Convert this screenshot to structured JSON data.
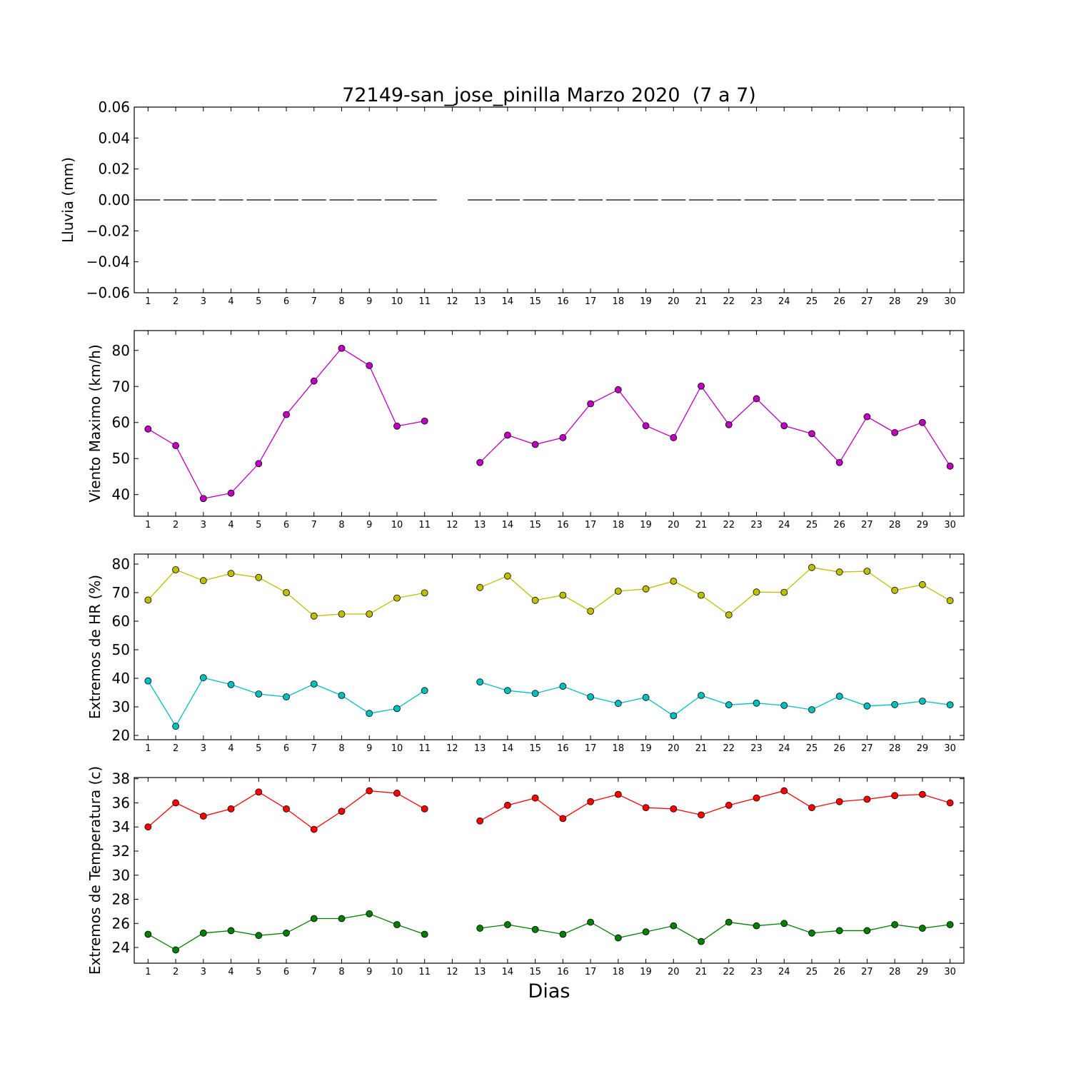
{
  "figure_title": "72149-san_jose_pinilla Marzo 2020  (7 a 7)",
  "xlabel": "Dias",
  "chart_data": [
    {
      "type": "line",
      "title": "72149-san_jose_pinilla Marzo 2020  (7 a 7)",
      "ylabel": "Lluvia (mm)",
      "xlabel": "",
      "ylim": [
        -0.06,
        0.06
      ],
      "yticks": [
        -0.06,
        -0.04,
        -0.02,
        0.0,
        0.02,
        0.04,
        0.06
      ],
      "ytick_labels": [
        "−0.06",
        "−0.04",
        "−0.02",
        "0.00",
        "0.02",
        "0.04",
        "0.06"
      ],
      "xlim": [
        0.5,
        30.5
      ],
      "x": [
        1,
        2,
        3,
        4,
        5,
        6,
        7,
        8,
        9,
        10,
        11,
        12,
        13,
        14,
        15,
        16,
        17,
        18,
        19,
        20,
        21,
        22,
        23,
        24,
        25,
        26,
        27,
        28,
        29,
        30
      ],
      "series": [
        {
          "color": "#000000",
          "style": "bar-dash",
          "marker": false,
          "values": [
            0,
            0,
            0,
            0,
            0,
            0,
            0,
            0,
            0,
            0,
            0,
            null,
            0,
            0,
            0,
            0,
            0,
            0,
            0,
            0,
            0,
            0,
            0,
            0,
            0,
            0,
            0,
            0,
            0,
            0
          ]
        }
      ]
    },
    {
      "type": "line",
      "ylabel": "Viento Maximo (km/h)",
      "ylim": [
        34,
        85.5
      ],
      "yticks": [
        40,
        50,
        60,
        70,
        80
      ],
      "ytick_labels": [
        "40",
        "50",
        "60",
        "70",
        "80"
      ],
      "xlim": [
        0.5,
        30.5
      ],
      "x": [
        1,
        2,
        3,
        4,
        5,
        6,
        7,
        8,
        9,
        10,
        11,
        12,
        13,
        14,
        15,
        16,
        17,
        18,
        19,
        20,
        21,
        22,
        23,
        24,
        25,
        26,
        27,
        28,
        29,
        30
      ],
      "series": [
        {
          "color": "#bf00bf",
          "marker": true,
          "values": [
            58.2,
            53.6,
            38.9,
            40.4,
            48.6,
            62.2,
            71.5,
            80.6,
            75.8,
            59.0,
            60.4,
            null,
            48.9,
            56.5,
            53.9,
            55.8,
            65.2,
            69.1,
            59.1,
            55.8,
            70.1,
            59.4,
            66.6,
            59.1,
            56.9,
            48.9,
            61.6,
            57.2,
            60.0,
            47.9
          ]
        }
      ]
    },
    {
      "type": "line",
      "ylabel": "Extremos de HR (%)",
      "ylim": [
        18.5,
        83.5
      ],
      "yticks": [
        20,
        30,
        40,
        50,
        60,
        70,
        80
      ],
      "ytick_labels": [
        "20",
        "30",
        "40",
        "50",
        "60",
        "70",
        "80"
      ],
      "xlim": [
        0.5,
        30.5
      ],
      "x": [
        1,
        2,
        3,
        4,
        5,
        6,
        7,
        8,
        9,
        10,
        11,
        12,
        13,
        14,
        15,
        16,
        17,
        18,
        19,
        20,
        21,
        22,
        23,
        24,
        25,
        26,
        27,
        28,
        29,
        30
      ],
      "series": [
        {
          "color": "#bfbf00",
          "marker": true,
          "values": [
            67.4,
            78.0,
            74.2,
            76.7,
            75.3,
            70.0,
            61.8,
            62.5,
            62.5,
            68.1,
            69.9,
            null,
            71.8,
            75.8,
            67.3,
            69.1,
            63.5,
            70.5,
            71.3,
            74.0,
            69.1,
            62.2,
            70.2,
            70.1,
            78.8,
            77.2,
            77.5,
            70.8,
            72.8,
            67.2
          ]
        },
        {
          "color": "#00bfbf",
          "marker": true,
          "values": [
            39.1,
            23.2,
            40.2,
            37.8,
            34.5,
            33.5,
            38.0,
            34.0,
            27.7,
            29.4,
            35.7,
            null,
            38.7,
            35.7,
            34.7,
            37.2,
            33.5,
            31.2,
            33.3,
            26.9,
            34.0,
            30.7,
            31.3,
            30.5,
            29.0,
            33.7,
            30.3,
            30.8,
            32.0,
            30.7
          ]
        }
      ]
    },
    {
      "type": "line",
      "ylabel": "Extremos de Temperatura (c)",
      "ylim": [
        22.7,
        38.1
      ],
      "yticks": [
        24,
        26,
        28,
        30,
        32,
        34,
        36,
        38
      ],
      "ytick_labels": [
        "24",
        "26",
        "28",
        "30",
        "32",
        "34",
        "36",
        "38"
      ],
      "xlim": [
        0.5,
        30.5
      ],
      "xlabel": "Dias",
      "x": [
        1,
        2,
        3,
        4,
        5,
        6,
        7,
        8,
        9,
        10,
        11,
        12,
        13,
        14,
        15,
        16,
        17,
        18,
        19,
        20,
        21,
        22,
        23,
        24,
        25,
        26,
        27,
        28,
        29,
        30
      ],
      "series": [
        {
          "color": "#ff0000",
          "marker": true,
          "values": [
            34.0,
            36.0,
            34.9,
            35.5,
            36.9,
            35.5,
            33.8,
            35.3,
            37.0,
            36.8,
            35.5,
            null,
            34.5,
            35.8,
            36.4,
            34.7,
            36.1,
            36.7,
            35.6,
            35.5,
            35.0,
            35.8,
            36.4,
            37.0,
            35.6,
            36.1,
            36.3,
            36.6,
            36.7,
            36.0
          ]
        },
        {
          "color": "#007f00",
          "marker": true,
          "values": [
            25.1,
            23.8,
            25.2,
            25.4,
            25.0,
            25.2,
            26.4,
            26.4,
            26.8,
            25.9,
            25.1,
            null,
            25.6,
            25.9,
            25.5,
            25.1,
            26.1,
            24.8,
            25.3,
            25.8,
            24.5,
            26.1,
            25.8,
            26.0,
            25.2,
            25.4,
            25.4,
            25.9,
            25.6,
            25.9
          ]
        }
      ]
    }
  ]
}
